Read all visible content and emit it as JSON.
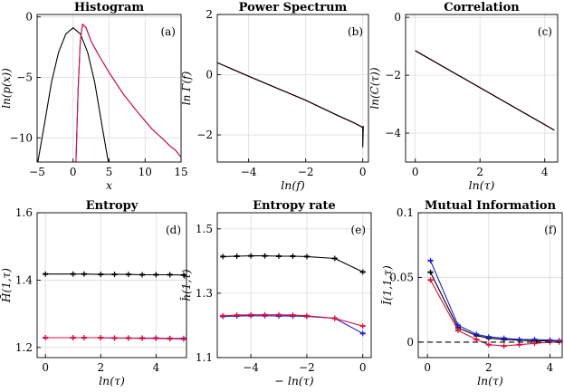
{
  "chart_data": [
    {
      "type": "line",
      "title": "Histogram",
      "panel_label": "(a)",
      "xlabel": "x",
      "ylabel": "ln(p(x))",
      "xlim": [
        -5,
        15
      ],
      "ylim": [
        -12,
        0.2
      ],
      "xticks": [
        -5,
        0,
        5,
        10,
        15
      ],
      "yticks": [
        -10,
        -5,
        0
      ],
      "grid": true,
      "series": [
        {
          "name": "gaussian",
          "color": "#000000",
          "x": [
            -4.9,
            -4,
            -3,
            -2,
            -1,
            0,
            1,
            2,
            3,
            4,
            4.6,
            4.9
          ],
          "y": [
            -12.0,
            -8.9,
            -5.4,
            -2.9,
            -1.4,
            -0.9,
            -1.4,
            -2.9,
            -5.4,
            -8.9,
            -11.0,
            -12.0
          ]
        },
        {
          "name": "blue",
          "color": "#1f1fd6",
          "x": [
            0.4,
            0.7,
            1.0,
            1.3,
            1.8,
            2.5,
            3.5,
            5,
            7,
            9,
            11,
            12.5,
            13.5,
            14.2,
            15
          ],
          "y": [
            -12.0,
            -6.0,
            -2.0,
            -0.6,
            -0.9,
            -2.0,
            -3.1,
            -4.6,
            -6.4,
            -7.9,
            -9.3,
            -10.1,
            -10.7,
            -11.0,
            -11.6
          ]
        },
        {
          "name": "red",
          "color": "#e0103a",
          "x": [
            0.4,
            0.7,
            1.0,
            1.3,
            1.8,
            2.5,
            3.5,
            5,
            7,
            9,
            11,
            12.5,
            13.5,
            14.2,
            15
          ],
          "y": [
            -12.0,
            -6.0,
            -2.0,
            -0.6,
            -0.9,
            -2.0,
            -3.1,
            -4.6,
            -6.4,
            -7.9,
            -9.3,
            -10.1,
            -10.7,
            -11.0,
            -11.6
          ]
        }
      ]
    },
    {
      "type": "line",
      "title": "Power Spectrum",
      "panel_label": "(b)",
      "xlabel": "ln(f)",
      "ylabel": "ln Γ(f)",
      "xlim": [
        -5.1,
        0.2
      ],
      "ylim": [
        -2.9,
        2
      ],
      "xticks": [
        -4,
        -2,
        0
      ],
      "yticks": [
        -2,
        0,
        2
      ],
      "grid": true,
      "series": [
        {
          "name": "blue",
          "color": "#1f1fd6",
          "x": [
            -5.1,
            -4,
            -3,
            -2,
            -1,
            -0.3,
            0
          ],
          "y": [
            0.4,
            -0.05,
            -0.45,
            -0.85,
            -1.3,
            -1.6,
            -1.75
          ]
        },
        {
          "name": "red",
          "color": "#e0103a",
          "x": [
            -5.1,
            -4,
            -3,
            -2,
            -1,
            -0.3,
            0
          ],
          "y": [
            0.4,
            -0.05,
            -0.45,
            -0.85,
            -1.3,
            -1.6,
            -1.75
          ]
        },
        {
          "name": "black",
          "color": "#000000",
          "x": [
            -5.1,
            -4,
            -3,
            -2,
            -1,
            -0.3,
            0,
            0,
            0.02
          ],
          "y": [
            0.4,
            -0.05,
            -0.45,
            -0.85,
            -1.3,
            -1.6,
            -1.75,
            -2.4,
            -1.7
          ]
        }
      ]
    },
    {
      "type": "line",
      "title": "Correlation",
      "panel_label": "(c)",
      "xlabel": "ln(τ)",
      "ylabel": "ln(C(τ))",
      "xlim": [
        -0.3,
        4.4
      ],
      "ylim": [
        -5,
        0.1
      ],
      "xticks": [
        0,
        2,
        4
      ],
      "yticks": [
        -4,
        -2,
        0
      ],
      "grid": true,
      "series": [
        {
          "name": "blue",
          "color": "#1f1fd6",
          "x": [
            0,
            4.3
          ],
          "y": [
            -1.15,
            -3.9
          ]
        },
        {
          "name": "red",
          "color": "#e0103a",
          "x": [
            0,
            4.3
          ],
          "y": [
            -1.15,
            -3.9
          ]
        },
        {
          "name": "black",
          "color": "#000000",
          "x": [
            0,
            4.3
          ],
          "y": [
            -1.15,
            -3.9
          ]
        }
      ]
    },
    {
      "type": "scatter",
      "title": "Entropy",
      "panel_label": "(d)",
      "xlabel": "ln(τ)",
      "ylabel": "H̄(1,τ)",
      "xlim": [
        -0.3,
        5.1
      ],
      "ylim": [
        1.17,
        1.6
      ],
      "xticks": [
        0,
        2,
        4
      ],
      "yticks": [
        1.2,
        1.4,
        1.6
      ],
      "grid": true,
      "series": [
        {
          "name": "black",
          "color": "#000000",
          "x": [
            0,
            1,
            1.4,
            2,
            2.5,
            3,
            3.5,
            4,
            4.5,
            5
          ],
          "y": [
            1.418,
            1.418,
            1.418,
            1.417,
            1.417,
            1.417,
            1.416,
            1.416,
            1.416,
            1.415
          ]
        },
        {
          "name": "blue",
          "color": "#1f1fd6",
          "x": [
            0,
            1,
            1.4,
            2,
            2.5,
            3,
            3.5,
            4,
            4.5,
            5
          ],
          "y": [
            1.229,
            1.229,
            1.229,
            1.229,
            1.228,
            1.228,
            1.228,
            1.228,
            1.227,
            1.227
          ]
        },
        {
          "name": "red",
          "color": "#e0103a",
          "x": [
            0,
            1,
            1.4,
            2,
            2.5,
            3,
            3.5,
            4,
            4.5,
            5
          ],
          "y": [
            1.229,
            1.229,
            1.229,
            1.229,
            1.228,
            1.228,
            1.227,
            1.227,
            1.226,
            1.225
          ]
        }
      ]
    },
    {
      "type": "scatter",
      "title": "Entropy rate",
      "panel_label": "(e)",
      "xlabel": "− ln(τ)",
      "ylabel": "ĥ(1,τ)",
      "xlim": [
        -5.2,
        0.3
      ],
      "ylim": [
        1.1,
        1.55
      ],
      "xticks": [
        -4,
        -2,
        0
      ],
      "yticks": [
        1.1,
        1.3,
        1.5
      ],
      "grid": true,
      "series": [
        {
          "name": "black",
          "color": "#000000",
          "x": [
            -5,
            -4.5,
            -4,
            -3.5,
            -3,
            -2.5,
            -2,
            -1,
            0
          ],
          "y": [
            1.414,
            1.415,
            1.416,
            1.416,
            1.415,
            1.415,
            1.414,
            1.408,
            1.366
          ]
        },
        {
          "name": "blue",
          "color": "#1f1fd6",
          "x": [
            -5,
            -4.5,
            -4,
            -3.5,
            -3,
            -2.5,
            -2,
            -1,
            0
          ],
          "y": [
            1.228,
            1.229,
            1.23,
            1.23,
            1.229,
            1.229,
            1.228,
            1.222,
            1.175
          ]
        },
        {
          "name": "red",
          "color": "#e0103a",
          "x": [
            -5,
            -4.5,
            -4,
            -3.5,
            -3,
            -2.5,
            -2,
            -1,
            0
          ],
          "y": [
            1.23,
            1.232,
            1.233,
            1.233,
            1.233,
            1.232,
            1.23,
            1.222,
            1.198
          ]
        }
      ]
    },
    {
      "type": "scatter",
      "title": "Mutual Information",
      "panel_label": "(f)",
      "xlabel": "ln(τ)",
      "ylabel": "Ī(1,1,τ)",
      "xlim": [
        -0.3,
        4.4
      ],
      "ylim": [
        -0.012,
        0.1
      ],
      "xticks": [
        0,
        2,
        4
      ],
      "yticks": [
        0,
        0.05,
        0.1
      ],
      "grid": true,
      "series": [
        {
          "name": "black",
          "color": "#000000",
          "x": [
            0.1,
            1.0,
            1.6,
            2.0,
            2.5,
            3.0,
            3.5,
            4.0,
            4.3
          ],
          "y": [
            0.054,
            0.011,
            0.005,
            0.003,
            0.002,
            0.0015,
            0.001,
            0.001,
            0.001
          ]
        },
        {
          "name": "blue",
          "color": "#1f1fd6",
          "x": [
            0.1,
            1.0,
            1.6,
            2.0,
            2.5,
            3.0,
            3.5,
            4.0,
            4.3
          ],
          "y": [
            0.063,
            0.013,
            0.006,
            0.004,
            0.003,
            0.002,
            0.002,
            0.0015,
            0.001
          ]
        },
        {
          "name": "red",
          "color": "#e0103a",
          "x": [
            0.1,
            1.0,
            1.6,
            2.0,
            2.5,
            3.0,
            3.5,
            4.0,
            4.3
          ],
          "y": [
            0.048,
            0.009,
            0.002,
            -0.002,
            -0.003,
            -0.002,
            -0.001,
            0.0,
            0.0
          ]
        },
        {
          "name": "zero-line",
          "color": "#000000",
          "dash": true,
          "x": [
            -0.3,
            4.4
          ],
          "y": [
            0,
            0
          ]
        }
      ]
    }
  ]
}
